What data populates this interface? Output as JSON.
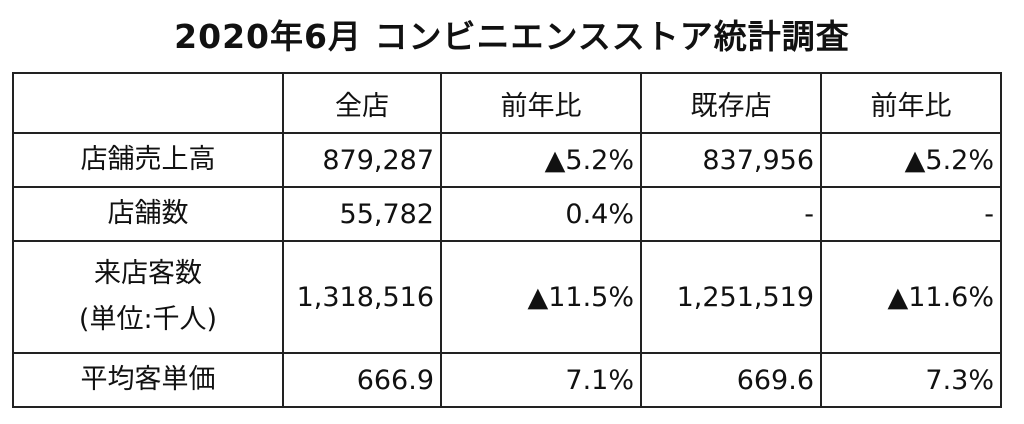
{
  "title": "2020年6月 コンビニエンスストア統計調査",
  "table": {
    "header": [
      "全店",
      "前年比",
      "既存店",
      "前年比"
    ],
    "rows": [
      {
        "label": [
          "店舗売上高"
        ],
        "cells": [
          "879,287",
          "▲5.2%",
          "837,956",
          "▲5.2%"
        ]
      },
      {
        "label": [
          "店舗数"
        ],
        "cells": [
          "55,782",
          "0.4%",
          "-",
          "-"
        ]
      },
      {
        "label": [
          "来店客数",
          "(単位:千人)"
        ],
        "cells": [
          "1,318,516",
          "▲11.5%",
          "1,251,519",
          "▲11.6%"
        ]
      },
      {
        "label": [
          "平均客単価"
        ],
        "cells": [
          "666.9",
          "7.1%",
          "669.6",
          "7.3%"
        ]
      }
    ]
  }
}
